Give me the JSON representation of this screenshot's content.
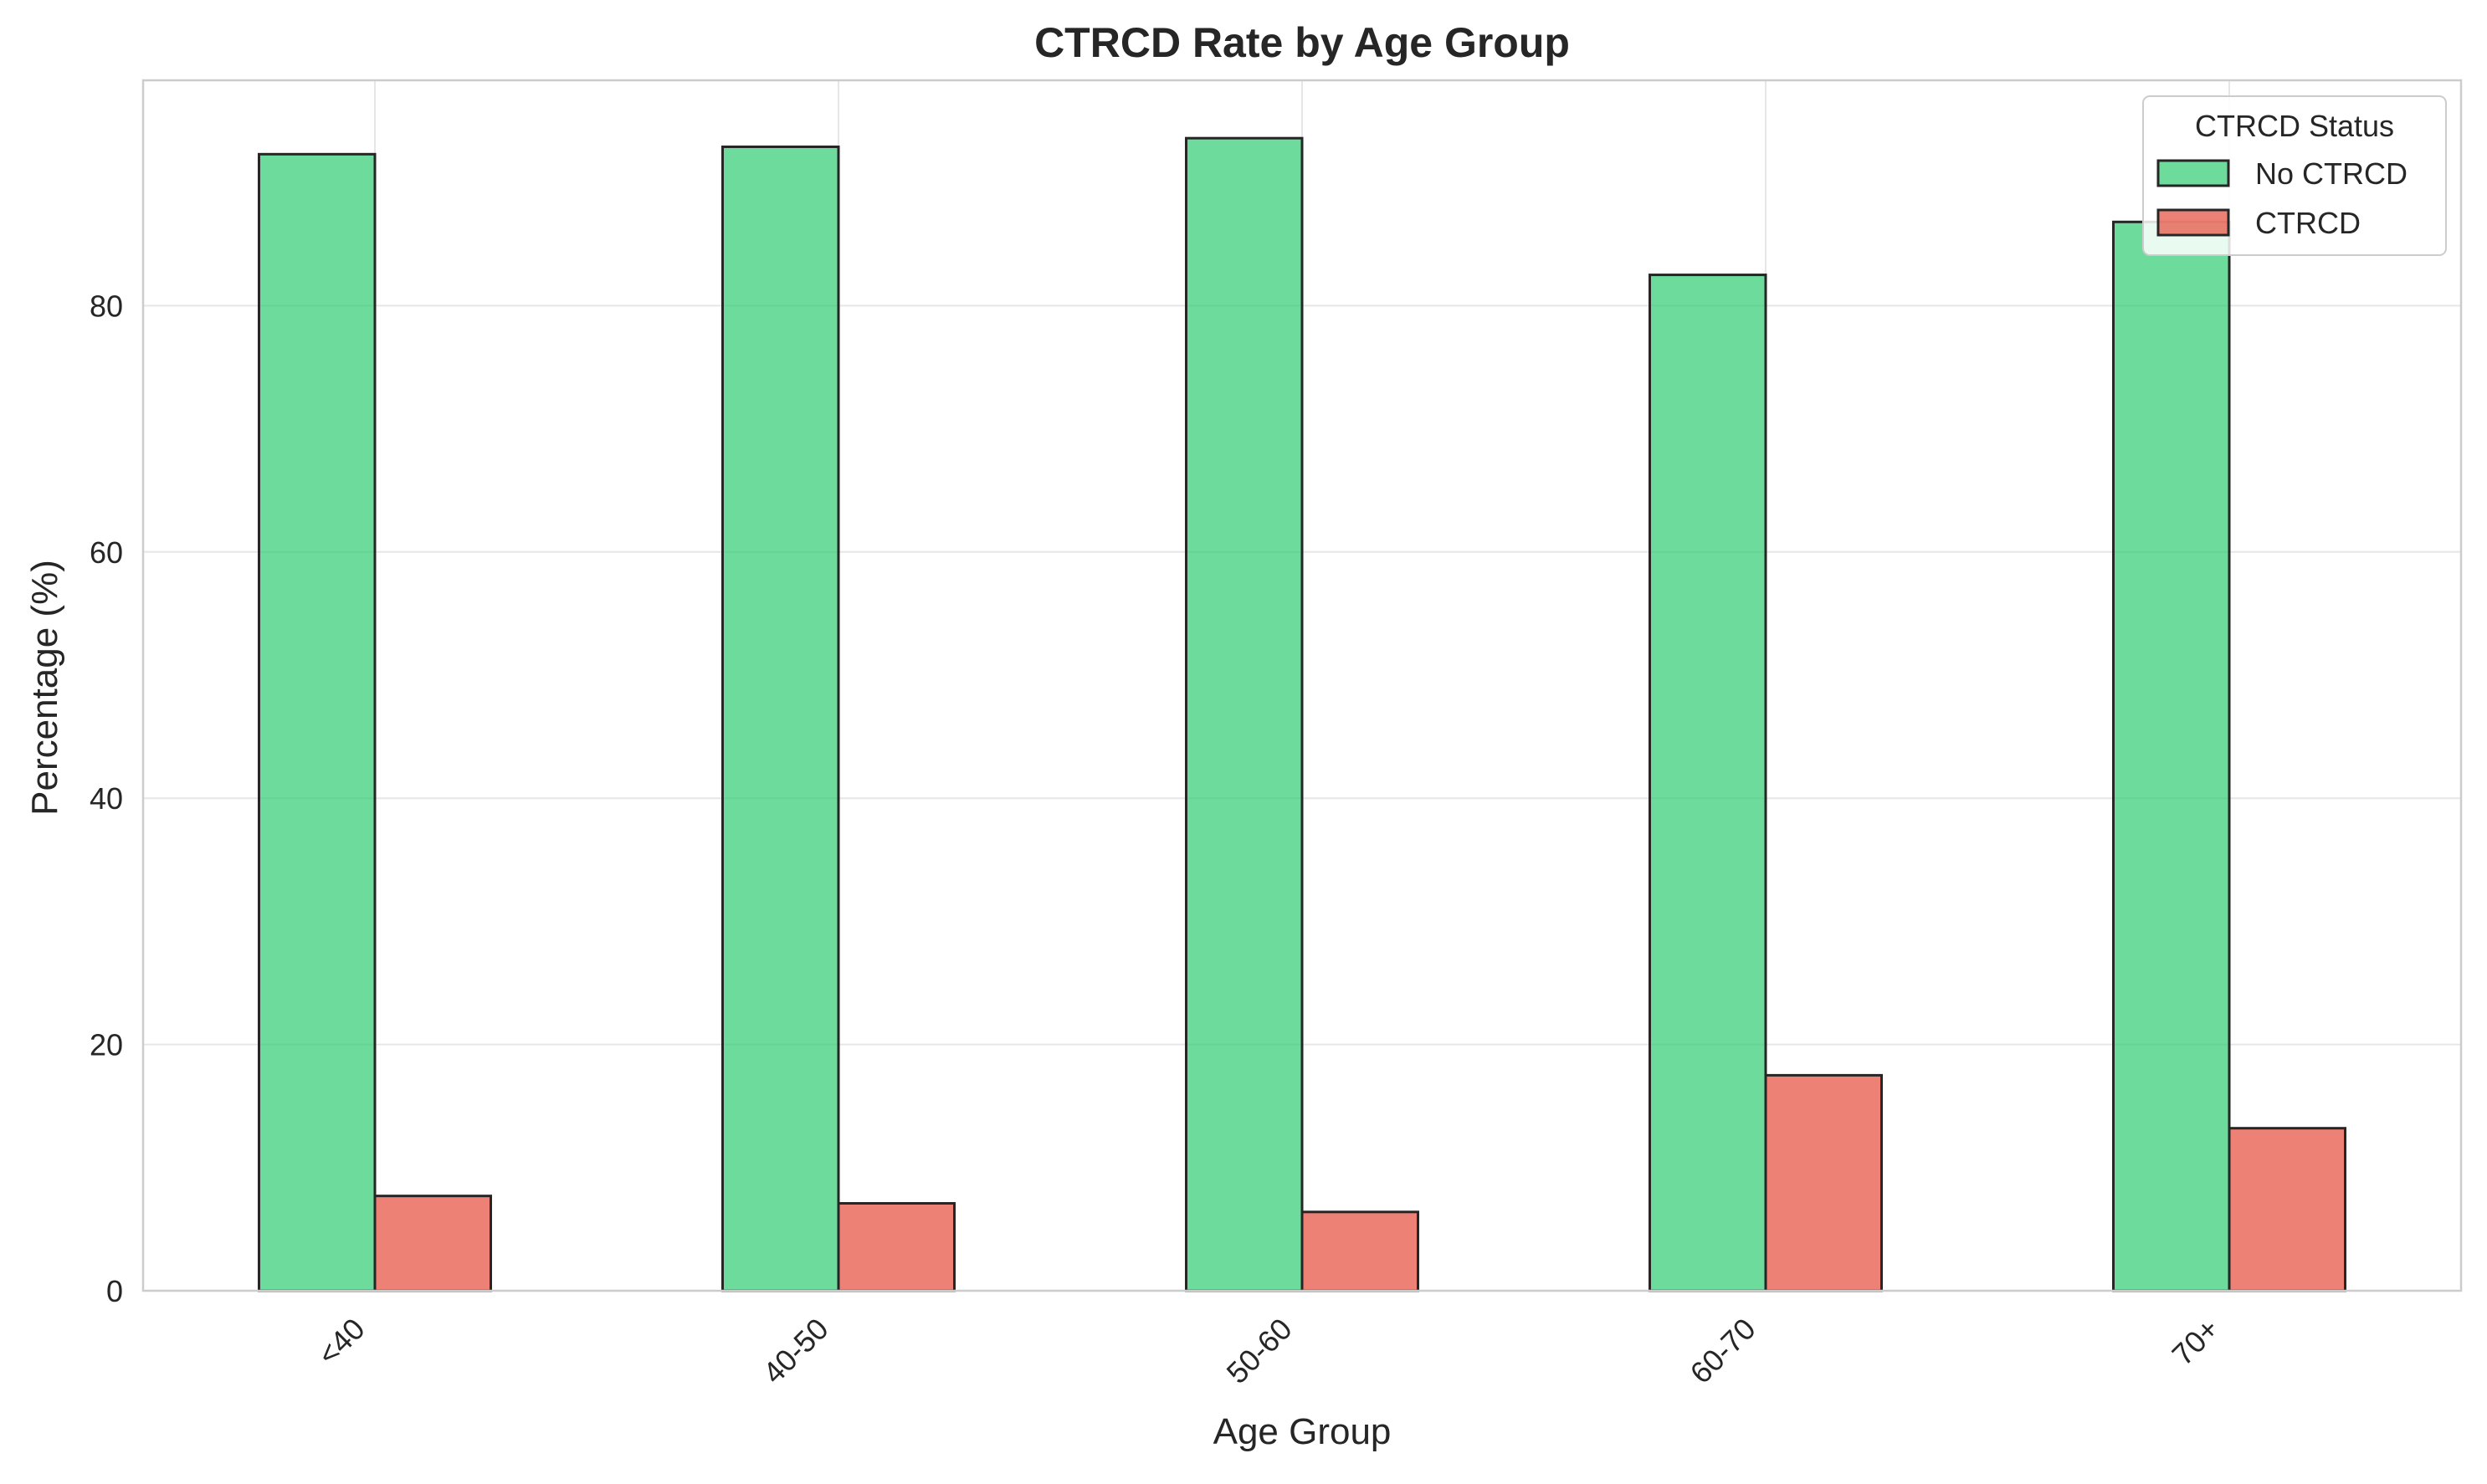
{
  "chart_data": {
    "type": "bar",
    "title": "CTRCD Rate by Age Group",
    "xlabel": "Age Group",
    "ylabel": "Percentage (%)",
    "categories": [
      "<40",
      "40-50",
      "50-60",
      "60-70",
      "70+"
    ],
    "series": [
      {
        "name": "No CTRCD",
        "color": "#2ecc71",
        "values": [
          92.3,
          92.9,
          93.6,
          82.5,
          86.8
        ]
      },
      {
        "name": "CTRCD",
        "color": "#e74c3c",
        "values": [
          7.7,
          7.1,
          6.4,
          17.5,
          13.2
        ]
      }
    ],
    "ylim": [
      0,
      98.3
    ],
    "yticks": [
      "0",
      "20",
      "40",
      "60",
      "80"
    ],
    "legend": {
      "title": "CTRCD Status",
      "placement": "top-right"
    },
    "grid": true
  }
}
